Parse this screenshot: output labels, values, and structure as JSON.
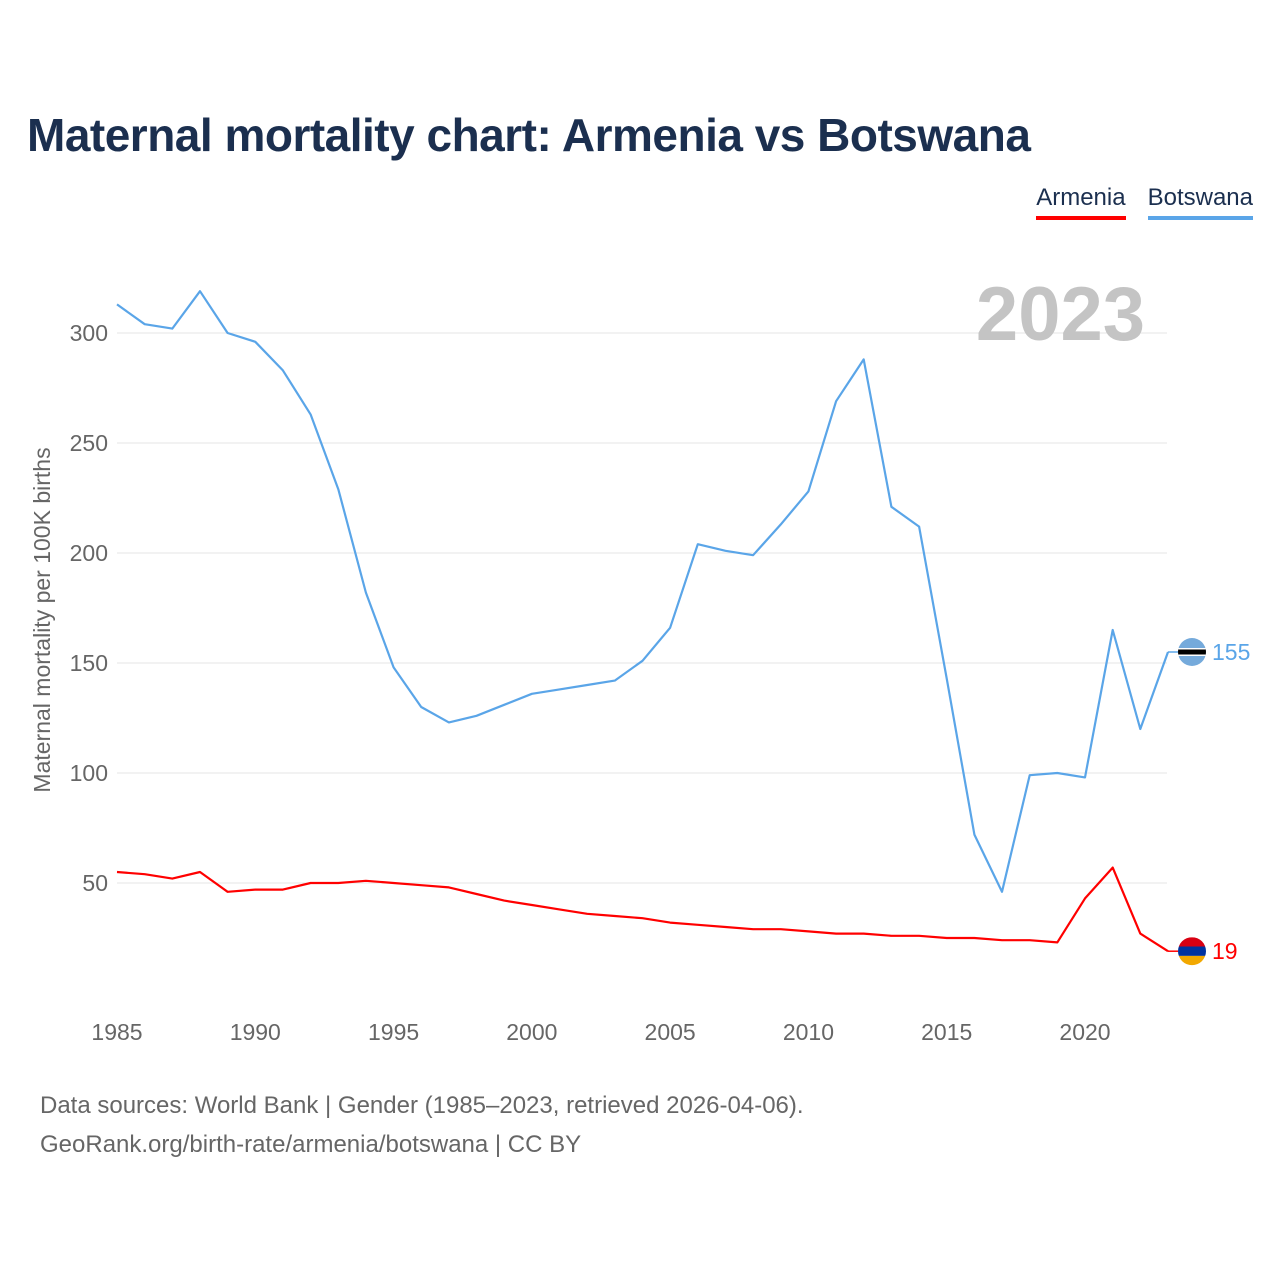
{
  "title": "Maternal mortality chart: Armenia vs Botswana",
  "legend": {
    "armenia": "Armenia",
    "botswana": "Botswana"
  },
  "year_label": "2023",
  "colors": {
    "armenia": "#ff0000",
    "botswana": "#5aa5e8",
    "title": "#1b2f4f"
  },
  "footer": {
    "line1": "Data sources: World Bank | Gender (1985–2023, retrieved 2026-04-06).",
    "line2": "GeoRank.org/birth-rate/armenia/botswana | CC BY"
  },
  "chart_data": {
    "type": "line",
    "title": "Maternal mortality chart: Armenia vs Botswana",
    "ylabel": "Maternal mortality per 100K births",
    "xlabel": "",
    "x": [
      1985,
      1986,
      1987,
      1988,
      1989,
      1990,
      1991,
      1992,
      1993,
      1994,
      1995,
      1996,
      1997,
      1998,
      1999,
      2000,
      2001,
      2002,
      2003,
      2004,
      2005,
      2006,
      2007,
      2008,
      2009,
      2010,
      2011,
      2012,
      2013,
      2014,
      2015,
      2016,
      2017,
      2018,
      2019,
      2020,
      2021,
      2022,
      2023
    ],
    "xlim": [
      1985,
      2024
    ],
    "ylim": [
      0,
      320
    ],
    "xticks": [
      1985,
      1990,
      1995,
      2000,
      2005,
      2010,
      2015,
      2020
    ],
    "yticks": [
      50,
      100,
      150,
      200,
      250,
      300
    ],
    "series": [
      {
        "name": "Armenia",
        "color": "#ff0000",
        "end_label": "19",
        "values": [
          55,
          54,
          52,
          55,
          46,
          47,
          47,
          50,
          50,
          51,
          50,
          49,
          48,
          45,
          42,
          40,
          38,
          36,
          35,
          34,
          32,
          31,
          30,
          29,
          29,
          28,
          27,
          27,
          26,
          26,
          25,
          25,
          24,
          24,
          23,
          43,
          57,
          27,
          19
        ]
      },
      {
        "name": "Botswana",
        "color": "#5aa5e8",
        "end_label": "155",
        "values": [
          313,
          304,
          302,
          319,
          300,
          296,
          283,
          263,
          229,
          182,
          148,
          130,
          123,
          126,
          131,
          136,
          138,
          140,
          142,
          151,
          166,
          204,
          201,
          199,
          213,
          228,
          269,
          288,
          221,
          212,
          143,
          72,
          46,
          99,
          100,
          98,
          165,
          120,
          155
        ]
      }
    ]
  }
}
